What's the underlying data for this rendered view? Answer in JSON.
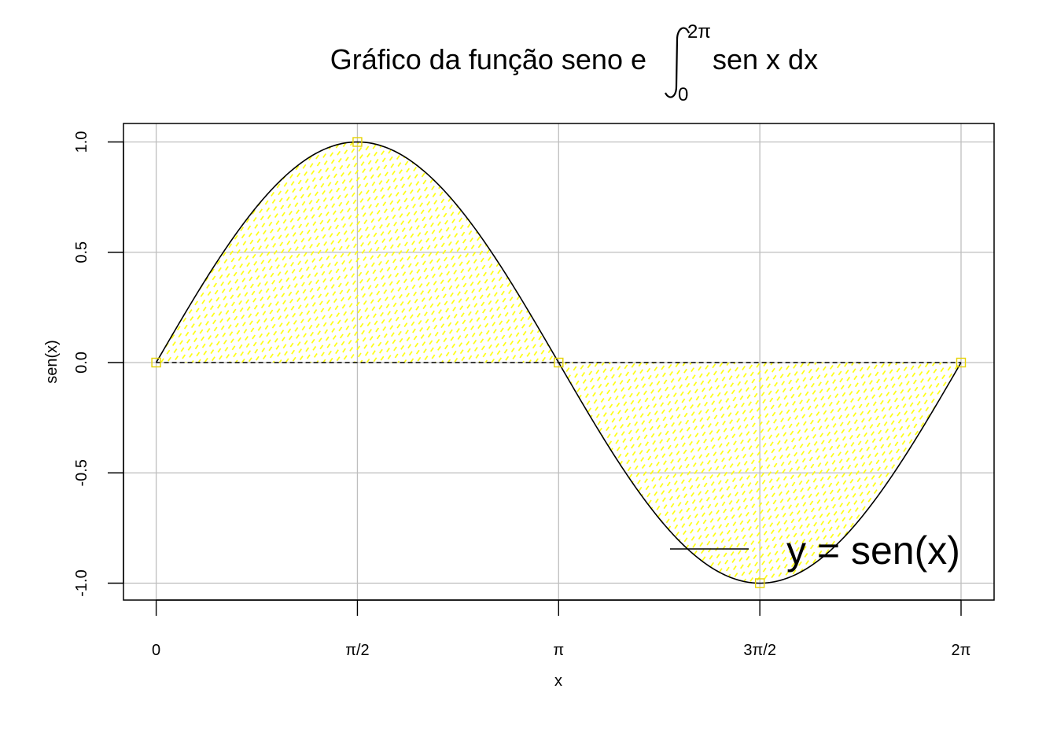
{
  "chart_data": {
    "type": "line",
    "title": {
      "prefix": "Gráfico da função seno  e",
      "integral_lower": "0",
      "integral_upper": "2π",
      "integrand": "sen x dx"
    },
    "xlabel": "x",
    "ylabel": "sen(x)",
    "xlim": [
      -0.5,
      13.0
    ],
    "ylim": [
      -1.08,
      1.08
    ],
    "x_ticks": [
      {
        "value": 0,
        "label": "0"
      },
      {
        "value": 1.5708,
        "label": "π/2"
      },
      {
        "value": 3.1416,
        "label": "π"
      },
      {
        "value": 4.7124,
        "label": "3π/2"
      },
      {
        "value": 6.2832,
        "label": "2π"
      }
    ],
    "y_ticks": [
      {
        "value": -1.0,
        "label": "-1.0"
      },
      {
        "value": -0.5,
        "label": "-0.5"
      },
      {
        "value": 0.0,
        "label": "0.0"
      },
      {
        "value": 0.5,
        "label": "0.5"
      },
      {
        "value": 1.0,
        "label": "1.0"
      }
    ],
    "grid": true,
    "series": [
      {
        "name": "y = sen(x)",
        "function": "sin",
        "x_range": [
          0,
          6.2832
        ],
        "color": "#000000",
        "fill_to_zero": true,
        "fill_color": "#ffff00"
      }
    ],
    "points": [
      {
        "x": 0,
        "y": 0
      },
      {
        "x": 1.5708,
        "y": 1
      },
      {
        "x": 3.1416,
        "y": 0
      },
      {
        "x": 4.7124,
        "y": -1
      },
      {
        "x": 6.2832,
        "y": 0
      }
    ],
    "point_color": "#e6d300",
    "baseline": {
      "y": 0,
      "x_range": [
        0,
        6.2832
      ],
      "style": "dashed"
    },
    "legend": {
      "label": "y = sen(x)",
      "placement": "bottom-right"
    },
    "grid_color": "#bebebe"
  }
}
